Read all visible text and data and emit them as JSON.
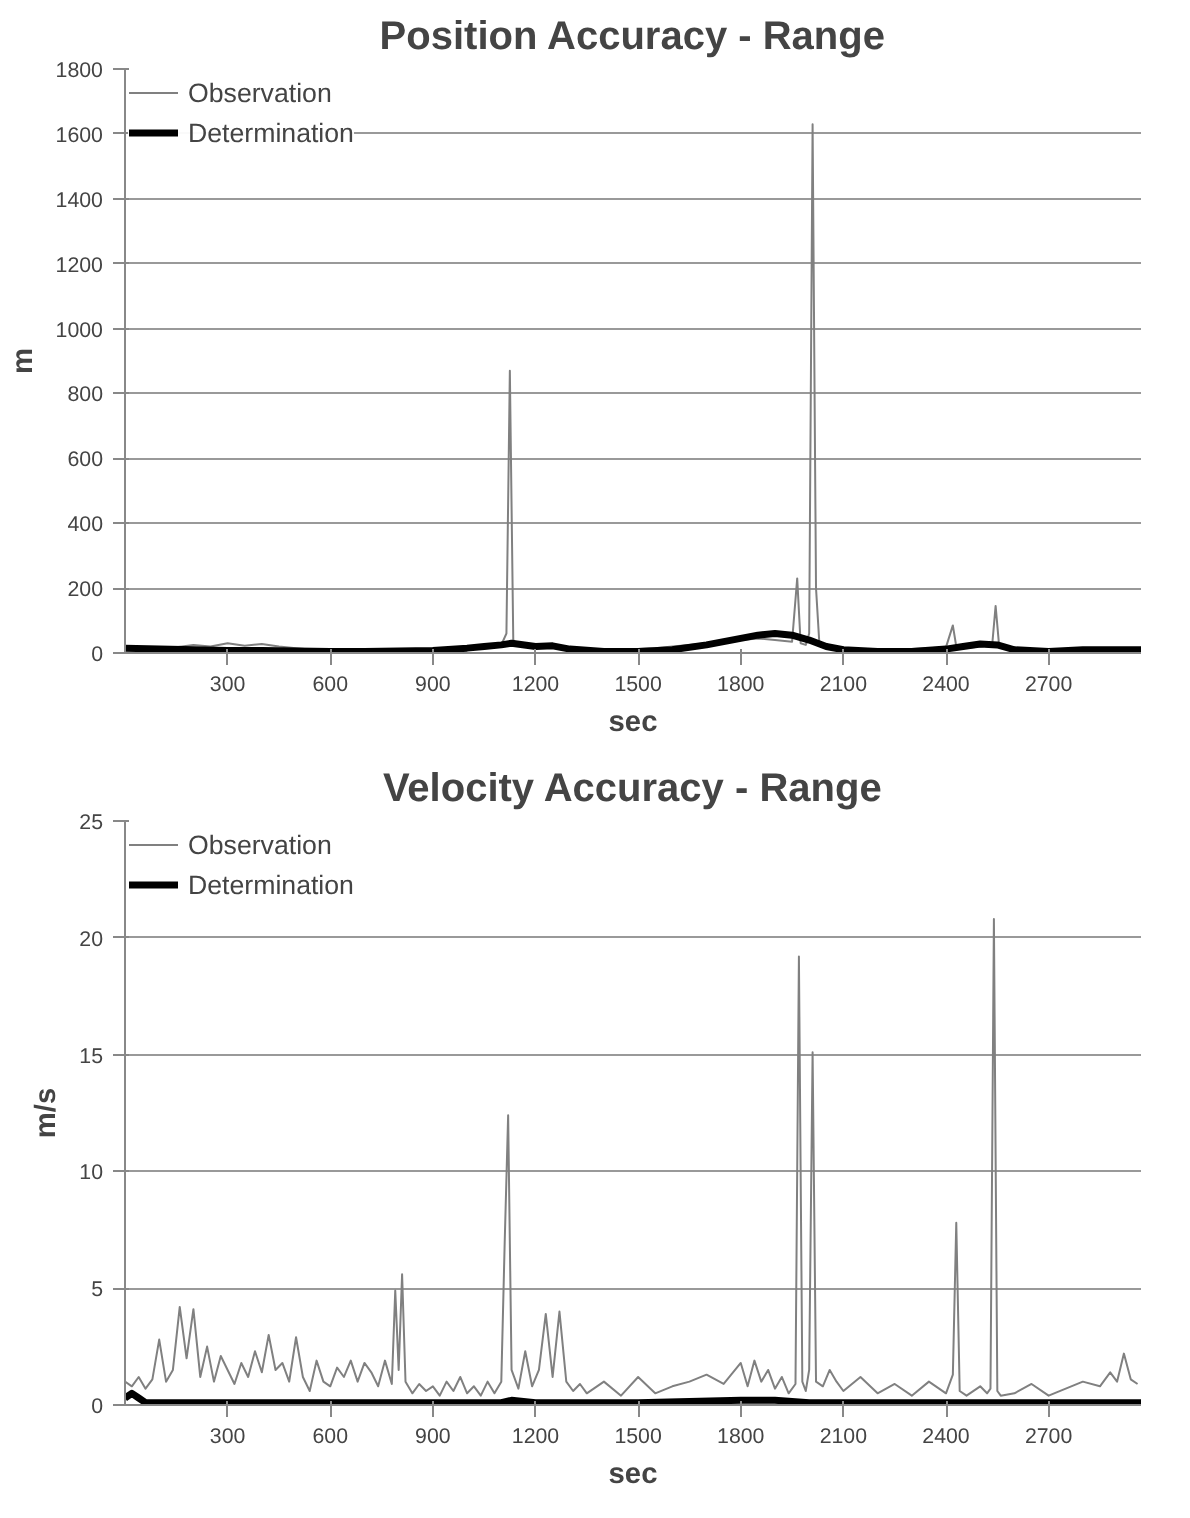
{
  "chart_data": [
    {
      "type": "line",
      "title": "Position Accuracy - Range",
      "xlabel": "sec",
      "ylabel": "m",
      "xlim": [
        0,
        2970
      ],
      "xticks": [
        300,
        600,
        900,
        1200,
        1500,
        1800,
        2100,
        2400,
        2700
      ],
      "ylim": [
        0,
        1800
      ],
      "yticks": [
        0,
        200,
        400,
        600,
        800,
        1000,
        1200,
        1400,
        1600,
        1800
      ],
      "grid": "y",
      "legend": "top left",
      "marker": "none",
      "series": [
        {
          "name": "Observation",
          "color": "#808080",
          "x": [
            0,
            50,
            100,
            150,
            200,
            250,
            300,
            350,
            400,
            450,
            500,
            550,
            600,
            650,
            700,
            750,
            800,
            850,
            900,
            950,
            1000,
            1050,
            1100,
            1115,
            1125,
            1135,
            1150,
            1200,
            1250,
            1300,
            1350,
            1400,
            1450,
            1500,
            1550,
            1600,
            1650,
            1700,
            1750,
            1800,
            1850,
            1900,
            1950,
            1965,
            1975,
            1990,
            2000,
            2010,
            2020,
            2030,
            2050,
            2100,
            2150,
            2200,
            2250,
            2300,
            2350,
            2400,
            2420,
            2430,
            2450,
            2500,
            2535,
            2545,
            2555,
            2600,
            2650,
            2700,
            2750,
            2800,
            2850,
            2900,
            2950
          ],
          "values": [
            20,
            15,
            12,
            18,
            25,
            20,
            30,
            22,
            28,
            20,
            15,
            10,
            8,
            10,
            8,
            12,
            10,
            8,
            10,
            15,
            20,
            22,
            25,
            60,
            870,
            40,
            25,
            20,
            25,
            15,
            10,
            8,
            10,
            12,
            15,
            20,
            25,
            30,
            35,
            40,
            45,
            40,
            35,
            230,
            30,
            25,
            60,
            1630,
            200,
            25,
            20,
            12,
            10,
            8,
            10,
            12,
            15,
            18,
            85,
            20,
            15,
            20,
            25,
            145,
            25,
            15,
            10,
            8,
            10,
            12,
            10,
            12,
            10
          ]
        },
        {
          "name": "Determination",
          "color": "#000000",
          "x": [
            0,
            100,
            200,
            300,
            400,
            500,
            600,
            700,
            800,
            900,
            1000,
            1050,
            1100,
            1130,
            1200,
            1250,
            1300,
            1400,
            1500,
            1600,
            1700,
            1800,
            1850,
            1900,
            1950,
            2000,
            2050,
            2100,
            2200,
            2300,
            2400,
            2450,
            2500,
            2550,
            2600,
            2700,
            2800,
            2900,
            2970
          ],
          "values": [
            15,
            12,
            10,
            8,
            8,
            6,
            5,
            5,
            6,
            8,
            15,
            20,
            25,
            30,
            20,
            22,
            12,
            5,
            5,
            10,
            25,
            45,
            55,
            60,
            55,
            40,
            20,
            10,
            5,
            5,
            12,
            20,
            28,
            25,
            10,
            5,
            10,
            10,
            10
          ]
        }
      ]
    },
    {
      "type": "line",
      "title": "Velocity Accuracy - Range",
      "xlabel": "sec",
      "ylabel": "m/s",
      "xlim": [
        0,
        2970
      ],
      "xticks": [
        300,
        600,
        900,
        1200,
        1500,
        1800,
        2100,
        2400,
        2700
      ],
      "ylim": [
        0,
        25
      ],
      "yticks": [
        0,
        5,
        10,
        15,
        20,
        25
      ],
      "grid": "y",
      "legend": "top left",
      "marker": "none",
      "series": [
        {
          "name": "Observation",
          "color": "#808080",
          "x": [
            0,
            20,
            40,
            60,
            80,
            100,
            120,
            140,
            160,
            180,
            200,
            220,
            240,
            260,
            280,
            300,
            320,
            340,
            360,
            380,
            400,
            420,
            440,
            460,
            480,
            500,
            520,
            540,
            560,
            580,
            600,
            620,
            640,
            660,
            680,
            700,
            720,
            740,
            760,
            780,
            790,
            800,
            810,
            820,
            840,
            860,
            880,
            900,
            920,
            940,
            960,
            980,
            1000,
            1020,
            1040,
            1060,
            1080,
            1100,
            1110,
            1120,
            1130,
            1150,
            1170,
            1190,
            1210,
            1230,
            1250,
            1270,
            1290,
            1310,
            1330,
            1350,
            1400,
            1450,
            1500,
            1550,
            1600,
            1650,
            1700,
            1750,
            1800,
            1820,
            1840,
            1860,
            1880,
            1900,
            1920,
            1940,
            1960,
            1970,
            1980,
            1990,
            2000,
            2010,
            2020,
            2040,
            2060,
            2080,
            2100,
            2150,
            2200,
            2250,
            2300,
            2350,
            2400,
            2420,
            2430,
            2440,
            2460,
            2500,
            2520,
            2530,
            2540,
            2550,
            2560,
            2600,
            2650,
            2700,
            2750,
            2800,
            2850,
            2880,
            2900,
            2920,
            2940,
            2960
          ],
          "values": [
            1.0,
            0.8,
            1.2,
            0.7,
            1.1,
            2.8,
            1.0,
            1.5,
            4.2,
            2.0,
            4.1,
            1.2,
            2.5,
            1.0,
            2.1,
            1.5,
            0.9,
            1.8,
            1.2,
            2.3,
            1.4,
            3.0,
            1.5,
            1.8,
            1.0,
            2.9,
            1.2,
            0.6,
            1.9,
            1.0,
            0.8,
            1.6,
            1.2,
            1.9,
            1.0,
            1.8,
            1.4,
            0.8,
            1.9,
            0.9,
            4.9,
            1.5,
            5.6,
            1.0,
            0.5,
            0.9,
            0.6,
            0.8,
            0.4,
            1.0,
            0.6,
            1.2,
            0.5,
            0.8,
            0.4,
            1.0,
            0.5,
            1.0,
            7.0,
            12.4,
            1.5,
            0.7,
            2.3,
            0.8,
            1.5,
            3.9,
            1.2,
            4.0,
            1.0,
            0.6,
            0.9,
            0.5,
            1.0,
            0.4,
            1.2,
            0.5,
            0.8,
            1.0,
            1.3,
            0.9,
            1.8,
            0.8,
            1.9,
            1.0,
            1.5,
            0.7,
            1.2,
            0.5,
            0.9,
            19.2,
            1.0,
            0.6,
            1.5,
            15.1,
            1.0,
            0.8,
            1.5,
            1.0,
            0.6,
            1.2,
            0.5,
            0.9,
            0.4,
            1.0,
            0.5,
            1.3,
            7.8,
            0.6,
            0.4,
            0.8,
            0.5,
            0.7,
            20.8,
            0.6,
            0.4,
            0.5,
            0.9,
            0.4,
            0.7,
            1.0,
            0.8,
            1.4,
            1.0,
            2.2,
            1.1,
            0.9
          ]
        },
        {
          "name": "Determination",
          "color": "#000000",
          "x": [
            0,
            20,
            40,
            60,
            100,
            300,
            600,
            900,
            1100,
            1130,
            1200,
            1500,
            1800,
            1900,
            2000,
            2100,
            2400,
            2600,
            2970
          ],
          "values": [
            0.3,
            0.5,
            0.3,
            0.1,
            0.1,
            0.1,
            0.1,
            0.1,
            0.1,
            0.2,
            0.1,
            0.1,
            0.2,
            0.2,
            0.1,
            0.1,
            0.1,
            0.1,
            0.1
          ]
        }
      ]
    }
  ]
}
